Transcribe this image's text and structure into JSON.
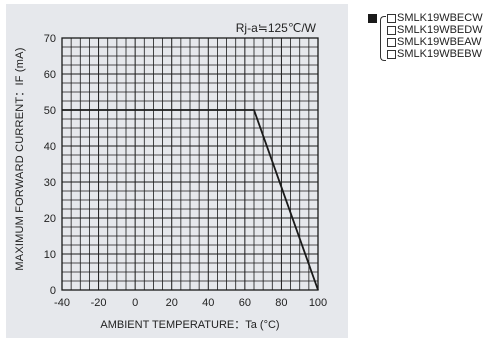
{
  "chart_data": {
    "type": "line",
    "annotation": "Rj-a≒125℃/W",
    "xlabel": "AMBIENT TEMPERATURE：Ta (°C)",
    "ylabel": "MAXIMUM FORWARD CURRENT：IF (mA)",
    "xlim": [
      -40,
      100
    ],
    "ylim": [
      0,
      70
    ],
    "x_ticks": [
      -40,
      -20,
      0,
      20,
      40,
      60,
      80,
      100
    ],
    "y_ticks": [
      0,
      10,
      20,
      30,
      40,
      50,
      60,
      70
    ],
    "grid": true,
    "series": [
      {
        "x": [
          -40,
          65,
          100
        ],
        "y": [
          50,
          50,
          0
        ]
      }
    ]
  },
  "legend": {
    "items": [
      "SMLK19WBECW",
      "SMLK19WBEDW",
      "SMLK19WBEAW",
      "SMLK19WBEBW"
    ]
  }
}
